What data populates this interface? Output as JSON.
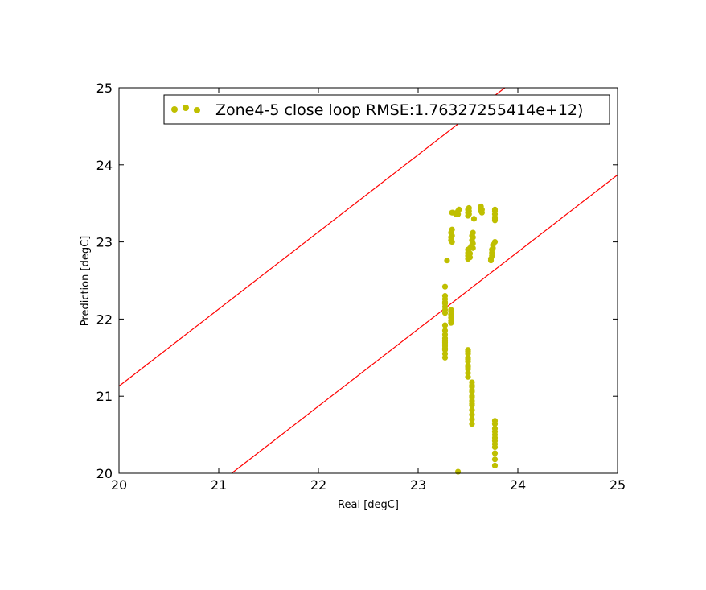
{
  "chart_data": {
    "type": "scatter",
    "xlabel": "Real [degC]",
    "ylabel": "Prediction [degC]",
    "xlim": [
      20,
      25
    ],
    "ylim": [
      20,
      25
    ],
    "x_ticks": [
      "20",
      "21",
      "22",
      "23",
      "24",
      "25"
    ],
    "y_ticks": [
      "20",
      "21",
      "22",
      "23",
      "24",
      "25"
    ],
    "grid": false,
    "legend_position": "top-right",
    "series": [
      {
        "name": "Zone4-5 close loop RMSE:1.76327255414e+12)",
        "color": "#bfbf00",
        "x": [
          23.27,
          23.27,
          23.27,
          23.27,
          23.27,
          23.27,
          23.27,
          23.27,
          23.27,
          23.27,
          23.27,
          23.27,
          23.27,
          23.27,
          23.27,
          23.27,
          23.27,
          23.27,
          23.27,
          23.27,
          23.29,
          23.33,
          23.33,
          23.33,
          23.33,
          23.33,
          23.33,
          23.33,
          23.33,
          23.33,
          23.34,
          23.34,
          23.34,
          23.34,
          23.35,
          23.38,
          23.4,
          23.4,
          23.41,
          23.4,
          23.5,
          23.5,
          23.5,
          23.5,
          23.5,
          23.5,
          23.5,
          23.5,
          23.5,
          23.5,
          23.5,
          23.5,
          23.5,
          23.5,
          23.5,
          23.5,
          23.5,
          23.5,
          23.51,
          23.51,
          23.51,
          23.52,
          23.52,
          23.52,
          23.54,
          23.54,
          23.54,
          23.54,
          23.54,
          23.54,
          23.54,
          23.54,
          23.54,
          23.54,
          23.54,
          23.54,
          23.54,
          23.54,
          23.54,
          23.54,
          23.54,
          23.55,
          23.55,
          23.55,
          23.55,
          23.56,
          23.63,
          23.63,
          23.63,
          23.64,
          23.64,
          23.73,
          23.73,
          23.74,
          23.74,
          23.74,
          23.75,
          23.75,
          23.77,
          23.77,
          23.77,
          23.77,
          23.77,
          23.77,
          23.77,
          23.77,
          23.77,
          23.77,
          23.77,
          23.77,
          23.77,
          23.77,
          23.77,
          23.77,
          23.77,
          23.77,
          23.77
        ],
        "y": [
          21.5,
          21.55,
          21.6,
          21.65,
          21.7,
          21.75,
          21.8,
          21.85,
          21.92,
          22.08,
          22.12,
          22.16,
          22.2,
          22.22,
          22.26,
          22.3,
          22.42,
          21.68,
          21.72,
          21.62,
          22.76,
          21.95,
          21.98,
          22.02,
          22.06,
          22.1,
          22.12,
          23.02,
          23.06,
          23.12,
          23.16,
          23.0,
          23.08,
          23.38,
          23.38,
          23.36,
          23.36,
          23.4,
          23.42,
          20.02,
          21.25,
          21.3,
          21.35,
          21.4,
          21.45,
          21.5,
          21.55,
          21.6,
          21.58,
          21.48,
          21.38,
          22.78,
          22.82,
          22.86,
          22.9,
          23.34,
          23.38,
          23.42,
          23.36,
          23.4,
          23.44,
          22.8,
          22.85,
          22.92,
          20.64,
          20.7,
          20.76,
          20.82,
          20.88,
          20.94,
          21.0,
          21.06,
          21.12,
          21.18,
          21.14,
          21.08,
          20.98,
          20.9,
          22.96,
          23.02,
          23.08,
          23.12,
          23.06,
          22.98,
          22.92,
          23.3,
          23.4,
          23.44,
          23.46,
          23.42,
          23.38,
          22.76,
          22.78,
          22.82,
          22.86,
          22.9,
          22.92,
          22.96,
          20.1,
          20.18,
          20.26,
          20.34,
          20.42,
          20.5,
          20.58,
          20.64,
          20.68,
          20.54,
          20.46,
          20.38,
          23.0,
          23.28,
          23.32,
          23.36,
          23.4,
          23.42,
          23.3
        ]
      }
    ],
    "reference_lines": [
      {
        "color": "#ff0000",
        "x": [
          20,
          23.87
        ],
        "y": [
          21.13,
          25
        ]
      },
      {
        "color": "#ff0000",
        "x": [
          21.13,
          25
        ],
        "y": [
          20,
          23.87
        ]
      }
    ]
  }
}
